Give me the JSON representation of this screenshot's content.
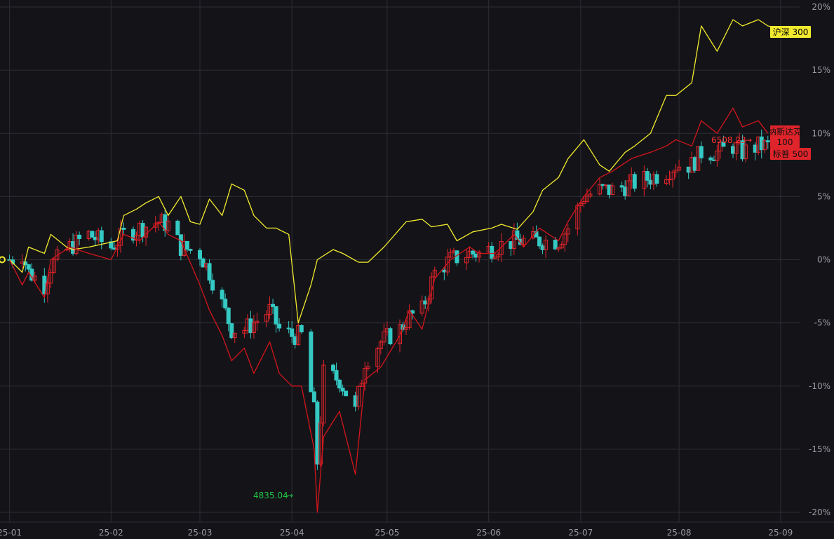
{
  "chart_data": {
    "type": "line",
    "chart_kind": "candlestick-with-comparison-lines",
    "y_unit": "%",
    "ylim": [
      -20,
      20
    ],
    "y_ticks": [
      "20%",
      "15%",
      "10%",
      "5%",
      "0%",
      "-5%",
      "-10%",
      "-15%",
      "-20%"
    ],
    "y_tick_values": [
      20,
      15,
      10,
      5,
      0,
      -5,
      -10,
      -15,
      -20
    ],
    "x_tick_labels": [
      "25-01",
      "25-02",
      "25-03",
      "25-04",
      "25-05",
      "25-06",
      "25-07",
      "25-08",
      "25-09"
    ],
    "x_tick_dates": [
      "2025-01-02",
      "2025-02-03",
      "2025-03-03",
      "2025-04-01",
      "2025-05-01",
      "2025-06-02",
      "2025-07-01",
      "2025-08-01",
      "2025-09-02"
    ],
    "grid": true,
    "colors": {
      "background": "#141418",
      "grid": "#2c2c33",
      "axis_text": "#9a9aa3",
      "up": "#e0242b",
      "down": "#35c9c3",
      "nasdaq_line": "#d4141c",
      "hs300_line": "#f2ea2e",
      "low_annotation": "#21c244",
      "high_annotation": "#ff3030"
    },
    "series": [
      {
        "name": "沪深 300",
        "kind": "line",
        "color": "#f2ea2e",
        "x": [
          "2025-01-02",
          "2025-01-06",
          "2025-01-08",
          "2025-01-13",
          "2025-01-15",
          "2025-01-20",
          "2025-01-22",
          "2025-01-27",
          "2025-02-05",
          "2025-02-07",
          "2025-02-11",
          "2025-02-14",
          "2025-02-18",
          "2025-02-21",
          "2025-02-25",
          "2025-02-28",
          "2025-03-03",
          "2025-03-06",
          "2025-03-10",
          "2025-03-13",
          "2025-03-17",
          "2025-03-20",
          "2025-03-24",
          "2025-03-27",
          "2025-03-31",
          "2025-04-03",
          "2025-04-07",
          "2025-04-09",
          "2025-04-14",
          "2025-04-17",
          "2025-04-22",
          "2025-04-25",
          "2025-04-30",
          "2025-05-07",
          "2025-05-12",
          "2025-05-15",
          "2025-05-20",
          "2025-05-23",
          "2025-05-28",
          "2025-06-03",
          "2025-06-06",
          "2025-06-11",
          "2025-06-16",
          "2025-06-19",
          "2025-06-24",
          "2025-06-27",
          "2025-07-02",
          "2025-07-07",
          "2025-07-10",
          "2025-07-15",
          "2025-07-18",
          "2025-07-23",
          "2025-07-28",
          "2025-07-31",
          "2025-08-05",
          "2025-08-08",
          "2025-08-13",
          "2025-08-18",
          "2025-08-21",
          "2025-08-26",
          "2025-08-29",
          "2025-09-02"
        ],
        "values": [
          0,
          -1,
          1,
          0.5,
          2,
          1,
          0.8,
          1,
          1.5,
          3.5,
          4,
          4.5,
          5,
          3.5,
          5,
          3,
          2.8,
          4.8,
          3.5,
          6,
          5.5,
          3.5,
          2.5,
          2.5,
          2,
          -5,
          -2,
          0,
          0.8,
          0.5,
          -0.2,
          -0.2,
          1,
          3,
          3.2,
          2.6,
          2.8,
          1.5,
          2.2,
          2.5,
          2.8,
          2.4,
          3.8,
          5.5,
          6.5,
          8,
          9.5,
          7.5,
          7,
          8.5,
          9,
          10,
          13,
          13,
          14,
          18.5,
          16.5,
          19,
          18.5,
          19,
          18.5,
          18.3
        ]
      },
      {
        "name": "纳斯达克 100",
        "kind": "line",
        "color": "#d4141c",
        "x": [
          "2025-01-02",
          "2025-01-06",
          "2025-01-08",
          "2025-01-13",
          "2025-01-15",
          "2025-01-21",
          "2025-01-27",
          "2025-02-03",
          "2025-02-07",
          "2025-02-12",
          "2025-02-18",
          "2025-02-21",
          "2025-02-25",
          "2025-03-03",
          "2025-03-06",
          "2025-03-10",
          "2025-03-13",
          "2025-03-17",
          "2025-03-20",
          "2025-03-25",
          "2025-03-28",
          "2025-04-01",
          "2025-04-04",
          "2025-04-08",
          "2025-04-09",
          "2025-04-11",
          "2025-04-16",
          "2025-04-21",
          "2025-04-24",
          "2025-04-29",
          "2025-05-05",
          "2025-05-08",
          "2025-05-12",
          "2025-05-16",
          "2025-05-21",
          "2025-05-27",
          "2025-05-30",
          "2025-06-04",
          "2025-06-10",
          "2025-06-13",
          "2025-06-18",
          "2025-06-24",
          "2025-06-27",
          "2025-07-02",
          "2025-07-07",
          "2025-07-11",
          "2025-07-17",
          "2025-07-23",
          "2025-07-28",
          "2025-07-31",
          "2025-08-05",
          "2025-08-08",
          "2025-08-13",
          "2025-08-18",
          "2025-08-21",
          "2025-08-26",
          "2025-08-29"
        ],
        "values": [
          0,
          -2,
          -1,
          -3,
          0,
          1,
          0.5,
          0,
          2,
          1.5,
          3,
          2,
          1.5,
          -2,
          -4,
          -6,
          -8,
          -7,
          -9,
          -6.5,
          -9,
          -10,
          -10,
          -15,
          -20,
          -14,
          -12,
          -17,
          -9.5,
          -8.5,
          -6,
          -4,
          -5.5,
          -1.5,
          0,
          1,
          0.5,
          0.5,
          2,
          1,
          2.5,
          1.5,
          3,
          5,
          6.5,
          7,
          8,
          8.5,
          9,
          9.5,
          9,
          11,
          10,
          12,
          10.5,
          11,
          10
        ]
      },
      {
        "name": "标普 500",
        "kind": "candlestick",
        "up_color": "#e0242b",
        "down_color": "#35c9c3",
        "x": [
          "2025-01-02",
          "2025-01-06",
          "2025-01-08",
          "2025-01-13",
          "2025-01-15",
          "2025-01-21",
          "2025-01-27",
          "2025-02-03",
          "2025-02-07",
          "2025-02-12",
          "2025-02-18",
          "2025-02-21",
          "2025-02-25",
          "2025-03-03",
          "2025-03-06",
          "2025-03-10",
          "2025-03-13",
          "2025-03-17",
          "2025-03-20",
          "2025-03-25",
          "2025-03-28",
          "2025-04-01",
          "2025-04-04",
          "2025-04-08",
          "2025-04-09",
          "2025-04-11",
          "2025-04-16",
          "2025-04-21",
          "2025-04-24",
          "2025-04-29",
          "2025-05-05",
          "2025-05-08",
          "2025-05-12",
          "2025-05-16",
          "2025-05-21",
          "2025-05-27",
          "2025-05-30",
          "2025-06-04",
          "2025-06-10",
          "2025-06-13",
          "2025-06-18",
          "2025-06-24",
          "2025-06-27",
          "2025-07-02",
          "2025-07-07",
          "2025-07-11",
          "2025-07-17",
          "2025-07-23",
          "2025-07-28",
          "2025-07-31",
          "2025-08-05",
          "2025-08-08",
          "2025-08-13",
          "2025-08-18",
          "2025-08-21",
          "2025-08-26",
          "2025-08-29"
        ],
        "open": [
          0,
          0.5,
          -1,
          -2,
          -0.5,
          1,
          2,
          1,
          2,
          2.5,
          3,
          2.8,
          1,
          0.5,
          -1,
          -3.5,
          -5.5,
          -5.5,
          -5,
          -4,
          -5.5,
          -6,
          -6,
          -12,
          -16,
          -9,
          -9.5,
          -12,
          -8,
          -6.5,
          -5.5,
          -4.5,
          -4,
          -1,
          0,
          0.5,
          0.5,
          1,
          1.5,
          1.5,
          1.5,
          1.5,
          2.5,
          5,
          5.5,
          5.5,
          6,
          6.5,
          7,
          7.5,
          7.5,
          8.5,
          8.5,
          9,
          8.5,
          9,
          9
        ]
      }
    ],
    "legend_tags": [
      "沪深 300",
      "纳斯达克",
      "100",
      "标普 500"
    ],
    "annotations": {
      "low_label": "4835.04",
      "high_label": "6508.23"
    }
  }
}
